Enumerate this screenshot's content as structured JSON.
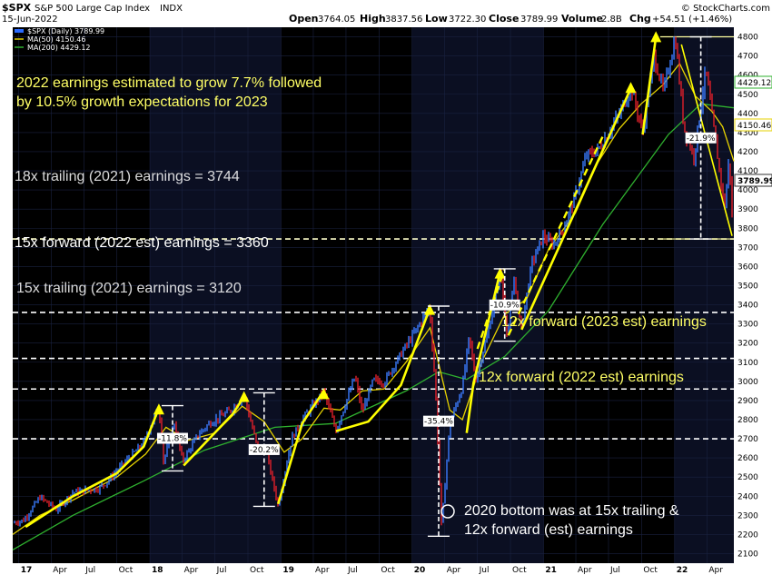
{
  "header": {
    "symbol": "$SPX",
    "name": "S&P 500 Large Cap Index",
    "exchange": "INDX",
    "date": "15-Jun-2022",
    "open_label": "Open",
    "open": "3764.05",
    "high_label": "High",
    "high": "3837.56",
    "low_label": "Low",
    "low": "3722.30",
    "close_label": "Close",
    "close": "3789.99",
    "volume_label": "Volume",
    "volume": "2.8B",
    "chg_label": "Chg",
    "chg": "+54.51 (+1.46%)",
    "watermark": "© StockCharts.com"
  },
  "legend": {
    "price": "$SPX (Daily) 3789.99",
    "ma50": "MA(50) 4150.46",
    "ma200": "MA(200) 4429.12"
  },
  "annotations": {
    "growth_line1": "2022 earnings estimated to grow 7.7% followed",
    "growth_line2": "by 10.5% growth expectations for 2023",
    "level_3744": "18x trailing (2021) earnings = 3744",
    "level_3360": "15x forward (2022 est) earnings = 3360",
    "level_3120": "15x trailing (2021) earnings = 3120",
    "level_2960": "12x forward (2023 est) earnings",
    "level_2700": "12x forward (2022 est) earnings",
    "bottom_line1": "2020 bottom was at 15x trailing &",
    "bottom_line2": "12x forward (est) earnings",
    "pct_2018a": "-11.8%",
    "pct_2018b": "-20.2%",
    "pct_2020": "-35.4%",
    "pct_2020b": "-10.9%",
    "pct_2022": "-21.9%"
  },
  "price_labels": {
    "ma200": "4429.12",
    "ma50": "4150.46",
    "close": "3789.99"
  },
  "colors": {
    "background": "#000000",
    "price_up": "#3a7bff",
    "price_down": "#e0202a",
    "ma50": "#e6d200",
    "ma200": "#2fb12f",
    "trend": "#ffff00",
    "dashed": "#ffffff"
  },
  "chart_data": {
    "type": "line",
    "title": "$SPX S&P 500 Large Cap Index INDX",
    "ylim": [
      2050,
      4850
    ],
    "yticks": [
      2100,
      2200,
      2300,
      2400,
      2500,
      2600,
      2700,
      2800,
      2900,
      3000,
      3100,
      3200,
      3300,
      3400,
      3500,
      3600,
      3700,
      3800,
      3900,
      4000,
      4100,
      4200,
      4300,
      4400,
      4500,
      4600,
      4700,
      4800
    ],
    "xticks": [
      "17",
      "Apr",
      "Jul",
      "Oct",
      "18",
      "Apr",
      "Jul",
      "Oct",
      "19",
      "Apr",
      "Jul",
      "Oct",
      "20",
      "Apr",
      "Jul",
      "Oct",
      "21",
      "Apr",
      "Jul",
      "Oct",
      "22",
      "Apr"
    ],
    "xlim": [
      "2016-12-15",
      "2022-06-15"
    ],
    "horizontal_levels": [
      3744,
      3360,
      3120,
      2960,
      2700
    ],
    "series": [
      {
        "name": "$SPX (Daily)",
        "points": [
          [
            "2016-12-15",
            2260
          ],
          [
            "2017-01-15",
            2275
          ],
          [
            "2017-03-01",
            2395
          ],
          [
            "2017-04-15",
            2330
          ],
          [
            "2017-06-01",
            2420
          ],
          [
            "2017-08-10",
            2440
          ],
          [
            "2017-09-01",
            2470
          ],
          [
            "2017-10-15",
            2560
          ],
          [
            "2017-12-15",
            2680
          ],
          [
            "2018-01-26",
            2873
          ],
          [
            "2018-02-08",
            2581
          ],
          [
            "2018-03-10",
            2780
          ],
          [
            "2018-04-02",
            2582
          ],
          [
            "2018-05-15",
            2720
          ],
          [
            "2018-06-15",
            2780
          ],
          [
            "2018-08-15",
            2850
          ],
          [
            "2018-09-20",
            2930
          ],
          [
            "2018-10-29",
            2641
          ],
          [
            "2018-11-20",
            2640
          ],
          [
            "2018-12-24",
            2351
          ],
          [
            "2019-01-31",
            2704
          ],
          [
            "2019-03-01",
            2800
          ],
          [
            "2019-04-30",
            2946
          ],
          [
            "2019-06-03",
            2744
          ],
          [
            "2019-07-26",
            3025
          ],
          [
            "2019-08-15",
            2840
          ],
          [
            "2019-09-15",
            3007
          ],
          [
            "2019-10-15",
            2995
          ],
          [
            "2019-11-30",
            3140
          ],
          [
            "2019-12-31",
            3231
          ],
          [
            "2020-02-19",
            3386
          ],
          [
            "2020-03-06",
            2970
          ],
          [
            "2020-03-23",
            2237
          ],
          [
            "2020-04-15",
            2780
          ],
          [
            "2020-05-20",
            2970
          ],
          [
            "2020-06-08",
            3232
          ],
          [
            "2020-06-26",
            3010
          ],
          [
            "2020-08-01",
            3270
          ],
          [
            "2020-09-02",
            3580
          ],
          [
            "2020-09-23",
            3237
          ],
          [
            "2020-10-12",
            3535
          ],
          [
            "2020-10-30",
            3270
          ],
          [
            "2020-11-30",
            3620
          ],
          [
            "2020-12-31",
            3756
          ],
          [
            "2021-01-29",
            3714
          ],
          [
            "2021-02-28",
            3811
          ],
          [
            "2021-03-31",
            3972
          ],
          [
            "2021-04-30",
            4181
          ],
          [
            "2021-05-31",
            4204
          ],
          [
            "2021-06-30",
            4297
          ],
          [
            "2021-07-31",
            4395
          ],
          [
            "2021-09-02",
            4536
          ],
          [
            "2021-10-04",
            4300
          ],
          [
            "2021-11-05",
            4697
          ],
          [
            "2021-12-01",
            4513
          ],
          [
            "2022-01-03",
            4796
          ],
          [
            "2022-01-27",
            4326
          ],
          [
            "2022-02-24",
            4170
          ],
          [
            "2022-03-29",
            4631
          ],
          [
            "2022-05-02",
            4155
          ],
          [
            "2022-05-20",
            3900
          ],
          [
            "2022-06-02",
            4176
          ],
          [
            "2022-06-13",
            3750
          ],
          [
            "2022-06-15",
            3790
          ]
        ]
      },
      {
        "name": "MA(50)",
        "points": [
          [
            "2016-12-15",
            2200
          ],
          [
            "2017-03-01",
            2300
          ],
          [
            "2017-06-01",
            2380
          ],
          [
            "2017-10-01",
            2500
          ],
          [
            "2017-12-20",
            2620
          ],
          [
            "2018-02-15",
            2760
          ],
          [
            "2018-04-15",
            2690
          ],
          [
            "2018-07-01",
            2730
          ],
          [
            "2018-09-15",
            2870
          ],
          [
            "2018-11-15",
            2790
          ],
          [
            "2019-01-10",
            2630
          ],
          [
            "2019-03-01",
            2700
          ],
          [
            "2019-05-01",
            2860
          ],
          [
            "2019-06-15",
            2850
          ],
          [
            "2019-08-15",
            2950
          ],
          [
            "2019-10-15",
            2960
          ],
          [
            "2019-12-15",
            3100
          ],
          [
            "2020-02-20",
            3280
          ],
          [
            "2020-04-15",
            2850
          ],
          [
            "2020-05-20",
            2800
          ],
          [
            "2020-07-15",
            3110
          ],
          [
            "2020-09-15",
            3350
          ],
          [
            "2020-11-15",
            3430
          ],
          [
            "2021-01-15",
            3690
          ],
          [
            "2021-03-31",
            3880
          ],
          [
            "2021-05-31",
            4140
          ],
          [
            "2021-07-31",
            4320
          ],
          [
            "2021-09-30",
            4450
          ],
          [
            "2021-11-30",
            4550
          ],
          [
            "2022-01-15",
            4660
          ],
          [
            "2022-02-28",
            4490
          ],
          [
            "2022-04-15",
            4410
          ],
          [
            "2022-05-15",
            4330
          ],
          [
            "2022-06-15",
            4150
          ]
        ]
      },
      {
        "name": "MA(200)",
        "points": [
          [
            "2016-12-15",
            2120
          ],
          [
            "2017-06-01",
            2300
          ],
          [
            "2017-12-15",
            2480
          ],
          [
            "2018-06-01",
            2640
          ],
          [
            "2018-12-15",
            2760
          ],
          [
            "2019-06-01",
            2780
          ],
          [
            "2019-12-15",
            2950
          ],
          [
            "2020-03-15",
            3050
          ],
          [
            "2020-06-01",
            3010
          ],
          [
            "2020-09-15",
            3130
          ],
          [
            "2021-01-15",
            3370
          ],
          [
            "2021-06-15",
            3820
          ],
          [
            "2021-12-15",
            4290
          ],
          [
            "2022-03-15",
            4450
          ],
          [
            "2022-06-15",
            4429
          ]
        ]
      }
    ]
  }
}
